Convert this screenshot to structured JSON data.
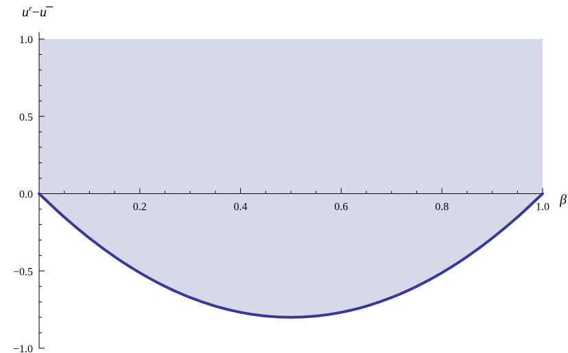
{
  "chart_data": {
    "type": "area",
    "title": "",
    "xlabel": "β",
    "ylabel": {
      "base": "u",
      "superscript": "r",
      "operator": "−",
      "bar": "u"
    },
    "xlim": [
      0,
      1
    ],
    "ylim": [
      -1,
      1
    ],
    "x_ticks": [
      0.2,
      0.4,
      0.6,
      0.8,
      1.0
    ],
    "x_tick_labels": [
      "0.2",
      "0.4",
      "0.6",
      "0.8",
      "1.0"
    ],
    "y_ticks": [
      1.0,
      0.5,
      0.0,
      -0.5,
      -1.0
    ],
    "y_tick_labels": [
      "1.0",
      "0.5",
      "0.0",
      "−0.5",
      "−1.0"
    ],
    "grid": false,
    "series": [
      {
        "x": [
          0,
          0.05,
          0.1,
          0.15,
          0.2,
          0.25,
          0.3,
          0.35,
          0.4,
          0.45,
          0.5,
          0.55,
          0.6,
          0.65,
          0.7,
          0.75,
          0.8,
          0.85,
          0.9,
          0.95,
          1.0
        ],
        "y": [
          0,
          -0.152,
          -0.288,
          -0.408,
          -0.512,
          -0.6,
          -0.672,
          -0.728,
          -0.768,
          -0.792,
          -0.8,
          -0.792,
          -0.768,
          -0.728,
          -0.672,
          -0.6,
          -0.512,
          -0.408,
          -0.288,
          -0.152,
          0
        ],
        "fill_between_upper": 1.0
      }
    ],
    "colors": {
      "line": "#3a3a8f",
      "fill": "#d7d9ea"
    }
  }
}
